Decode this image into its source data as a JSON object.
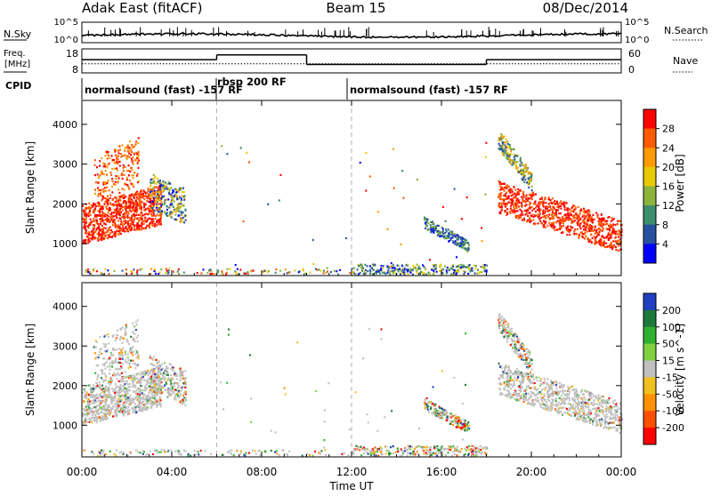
{
  "header": {
    "station": "Adak East (fitACF)",
    "beam": "Beam 15",
    "date": "08/Dec/2014"
  },
  "side_labels": {
    "nsky": "N.Sky",
    "nsearch": "N.Search",
    "freq_line1": "Freq.",
    "freq_line2": "[MHz]",
    "nave": "Nave",
    "cpid": "CPID"
  },
  "cpid_segments": [
    {
      "label": "normalsound (fast) -157 RF",
      "start": 0,
      "end": 6
    },
    {
      "label": "rbsp 200 RF",
      "start": 6,
      "end": 12
    },
    {
      "label": "normalsound (fast) -157 RF",
      "start": 12,
      "end": 24
    }
  ],
  "noise_panel": {
    "left_ticks": [
      "10^5",
      "10^0"
    ],
    "right_ticks": [
      "10^5",
      "10^0"
    ]
  },
  "freq_panel": {
    "left_ticks": [
      "18",
      "8"
    ],
    "right_ticks": [
      "60",
      "0"
    ],
    "freq_steps": [
      {
        "t0": 0,
        "t1": 6,
        "value": 13.5
      },
      {
        "t0": 6,
        "t1": 10,
        "value": 15.5
      },
      {
        "t0": 10,
        "t1": 18,
        "value": 11.5
      },
      {
        "t0": 18,
        "t1": 24,
        "value": 13.5
      }
    ]
  },
  "chart_data": {
    "type": "heatmap",
    "xlabel": "Time UT",
    "x_ticks": [
      "00:00",
      "04:00",
      "08:00",
      "12:00",
      "16:00",
      "20:00",
      "00:00"
    ],
    "xlim": [
      0,
      24
    ],
    "panels": [
      {
        "name": "power",
        "ylabel": "Slant Range [km]",
        "y_ticks": [
          1000,
          2000,
          3000,
          4000
        ],
        "ylim": [
          200,
          4600
        ],
        "colorbar": {
          "label": "Power [dB]",
          "ticks": [
            "28",
            "24",
            "20",
            "16",
            "12",
            "8",
            "4"
          ],
          "colors": [
            "#ff0000",
            "#ff5a00",
            "#ff9a00",
            "#e8c800",
            "#8ab43c",
            "#3c8c6e",
            "#2850a0",
            "#0000ff"
          ]
        }
      },
      {
        "name": "velocity",
        "ylabel": "Slant Range [km]",
        "y_ticks": [
          1000,
          2000,
          3000,
          4000
        ],
        "ylim": [
          200,
          4600
        ],
        "colorbar": {
          "label": "Velocity [m s^-1]",
          "ticks": [
            "200",
            "100",
            "50",
            "15",
            "-15",
            "-50",
            "-100",
            "-200"
          ],
          "colors": [
            "#2040c0",
            "#1c7a3c",
            "#30b030",
            "#80d040",
            "#c0c0c0",
            "#f0c020",
            "#ff9000",
            "#ff5000",
            "#ff0000"
          ]
        }
      }
    ]
  }
}
